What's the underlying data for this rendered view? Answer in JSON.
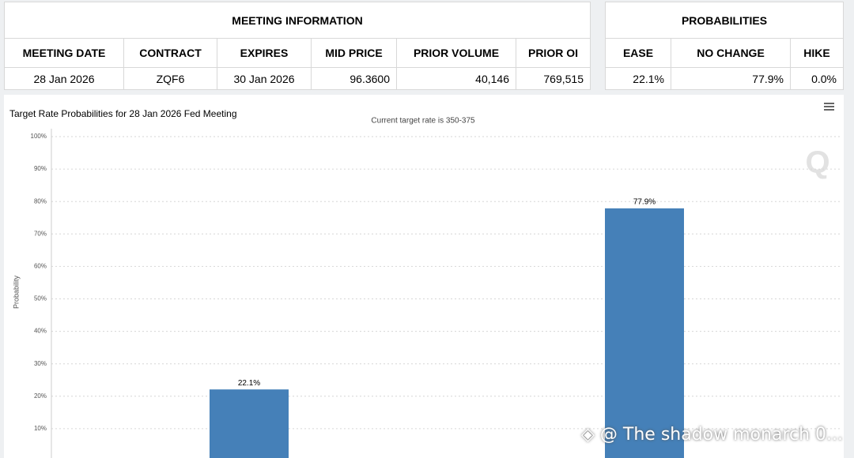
{
  "meeting_info": {
    "title": "MEETING INFORMATION",
    "headers": [
      "MEETING DATE",
      "CONTRACT",
      "EXPIRES",
      "MID PRICE",
      "PRIOR VOLUME",
      "PRIOR OI"
    ],
    "row": [
      "28 Jan 2026",
      "ZQF6",
      "30 Jan 2026",
      "96.3600",
      "40,146",
      "769,515"
    ]
  },
  "probabilities": {
    "title": "PROBABILITIES",
    "headers": [
      "EASE",
      "NO CHANGE",
      "HIKE"
    ],
    "row": [
      "22.1%",
      "77.9%",
      "0.0%"
    ]
  },
  "chart_data": {
    "type": "bar",
    "title": "Target Rate Probabilities for 28 Jan 2026 Fed Meeting",
    "subtitle": "Current target rate is 350-375",
    "y_label": "Probability",
    "logo": "Q",
    "categories": [
      null,
      null
    ],
    "values": [
      22.1,
      77.9
    ],
    "value_labels": [
      "22.1%",
      "77.9%"
    ],
    "color": "#4580b8",
    "ylim": [
      0,
      100
    ],
    "yticks": [
      {
        "value": 10,
        "label": "10%"
      },
      {
        "value": 20,
        "label": "20%"
      },
      {
        "value": 30,
        "label": "30%"
      },
      {
        "value": 40,
        "label": "40%"
      },
      {
        "value": 50,
        "label": "50%"
      },
      {
        "value": 60,
        "label": "60%"
      },
      {
        "value": 70,
        "label": "70%"
      },
      {
        "value": 80,
        "label": "80%"
      },
      {
        "value": 90,
        "label": "90%"
      },
      {
        "value": 100,
        "label": "100%"
      }
    ],
    "grid": true
  },
  "watermark": "@ The shadow monarch 0..."
}
